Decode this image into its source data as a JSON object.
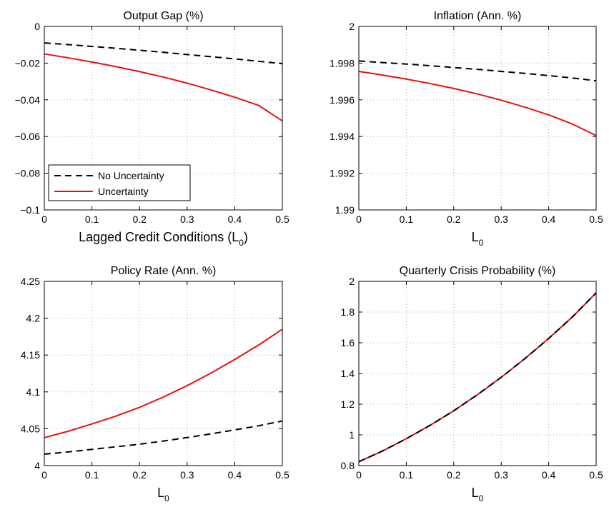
{
  "chart_data": [
    {
      "type": "line",
      "title": "Output Gap (%)",
      "xlabel": "Lagged Credit Conditions (L",
      "xlabel_sub": "0",
      "xlabel_suffix": ")",
      "xlim": [
        0,
        0.5
      ],
      "ylim": [
        -0.1,
        0
      ],
      "xticks": [
        "0",
        "0.1",
        "0.2",
        "0.3",
        "0.4",
        "0.5"
      ],
      "yticks": [
        "−0.1",
        "−0.08",
        "−0.06",
        "−0.04",
        "−0.02",
        "0"
      ],
      "grid": true,
      "legend": {
        "position": "bottom-left",
        "entries": [
          "No Uncertainty",
          "Uncertainty"
        ]
      },
      "series": [
        {
          "name": "No Uncertainty",
          "color": "#000000",
          "style": "dashed",
          "x": [
            0,
            0.05,
            0.1,
            0.15,
            0.2,
            0.25,
            0.3,
            0.35,
            0.4,
            0.45,
            0.5
          ],
          "y": [
            -0.009,
            -0.0099,
            -0.0109,
            -0.0119,
            -0.013,
            -0.0141,
            -0.0153,
            -0.0165,
            -0.0177,
            -0.019,
            -0.0203
          ]
        },
        {
          "name": "Uncertainty",
          "color": "#e81010",
          "style": "solid",
          "x": [
            0,
            0.05,
            0.1,
            0.15,
            0.2,
            0.25,
            0.3,
            0.35,
            0.4,
            0.45,
            0.5
          ],
          "y": [
            -0.015,
            -0.0171,
            -0.0194,
            -0.0219,
            -0.0246,
            -0.0276,
            -0.0309,
            -0.0346,
            -0.0386,
            -0.043,
            -0.0515
          ]
        }
      ]
    },
    {
      "type": "line",
      "title": "Inflation (Ann. %)",
      "xlabel": "L",
      "xlabel_sub": "0",
      "xlabel_suffix": "",
      "xlim": [
        0,
        0.5
      ],
      "ylim": [
        1.99,
        2
      ],
      "xticks": [
        "0",
        "0.1",
        "0.2",
        "0.3",
        "0.4",
        "0.5"
      ],
      "yticks": [
        "1.99",
        "1.992",
        "1.994",
        "1.996",
        "1.998",
        "2"
      ],
      "grid": true,
      "series": [
        {
          "name": "No Uncertainty",
          "color": "#000000",
          "style": "dashed",
          "x": [
            0,
            0.05,
            0.1,
            0.15,
            0.2,
            0.25,
            0.3,
            0.35,
            0.4,
            0.45,
            0.5
          ],
          "y": [
            1.99812,
            1.99803,
            1.99795,
            1.99786,
            1.99776,
            1.99766,
            1.99755,
            1.99744,
            1.99732,
            1.99719,
            1.99704
          ]
        },
        {
          "name": "Uncertainty",
          "color": "#e81010",
          "style": "solid",
          "x": [
            0,
            0.05,
            0.1,
            0.15,
            0.2,
            0.25,
            0.3,
            0.35,
            0.4,
            0.45,
            0.5
          ],
          "y": [
            1.99755,
            1.99735,
            1.99713,
            1.99689,
            1.99662,
            1.99632,
            1.99598,
            1.9956,
            1.99518,
            1.99468,
            1.99405
          ]
        }
      ]
    },
    {
      "type": "line",
      "title": "Policy Rate (Ann. %)",
      "xlabel": "L",
      "xlabel_sub": "0",
      "xlabel_suffix": "",
      "xlim": [
        0,
        0.5
      ],
      "ylim": [
        4,
        4.25
      ],
      "xticks": [
        "0",
        "0.1",
        "0.2",
        "0.3",
        "0.4",
        "0.5"
      ],
      "yticks": [
        "4",
        "4.05",
        "4.1",
        "4.15",
        "4.2",
        "4.25"
      ],
      "grid": true,
      "series": [
        {
          "name": "No Uncertainty",
          "color": "#000000",
          "style": "dashed",
          "x": [
            0,
            0.05,
            0.1,
            0.15,
            0.2,
            0.25,
            0.3,
            0.35,
            0.4,
            0.45,
            0.5
          ],
          "y": [
            4.0155,
            4.0185,
            4.022,
            4.0255,
            4.029,
            4.0333,
            4.038,
            4.043,
            4.0485,
            4.054,
            4.0605
          ]
        },
        {
          "name": "Uncertainty",
          "color": "#e81010",
          "style": "solid",
          "x": [
            0,
            0.05,
            0.1,
            0.15,
            0.2,
            0.25,
            0.3,
            0.35,
            0.4,
            0.45,
            0.5
          ],
          "y": [
            4.038,
            4.0465,
            4.0565,
            4.067,
            4.079,
            4.093,
            4.1085,
            4.1255,
            4.144,
            4.1635,
            4.185
          ]
        }
      ]
    },
    {
      "type": "line",
      "title": "Quarterly Crisis Probability (%)",
      "xlabel": "L",
      "xlabel_sub": "0",
      "xlabel_suffix": "",
      "xlim": [
        0,
        0.5
      ],
      "ylim": [
        0.8,
        2
      ],
      "xticks": [
        "0",
        "0.1",
        "0.2",
        "0.3",
        "0.4",
        "0.5"
      ],
      "yticks": [
        "0.8",
        "1",
        "1.2",
        "1.4",
        "1.6",
        "1.8",
        "2"
      ],
      "grid": true,
      "series": [
        {
          "name": "Uncertainty",
          "color": "#e81010",
          "style": "solid",
          "x": [
            0,
            0.05,
            0.1,
            0.15,
            0.2,
            0.25,
            0.3,
            0.35,
            0.4,
            0.45,
            0.5
          ],
          "y": [
            0.825,
            0.895,
            0.975,
            1.062,
            1.157,
            1.262,
            1.375,
            1.497,
            1.628,
            1.768,
            1.925
          ]
        },
        {
          "name": "No Uncertainty",
          "color": "#000000",
          "style": "dashed",
          "x": [
            0,
            0.05,
            0.1,
            0.15,
            0.2,
            0.25,
            0.3,
            0.35,
            0.4,
            0.45,
            0.5
          ],
          "y": [
            0.825,
            0.895,
            0.975,
            1.062,
            1.157,
            1.262,
            1.375,
            1.497,
            1.628,
            1.768,
            1.925
          ]
        }
      ]
    }
  ]
}
